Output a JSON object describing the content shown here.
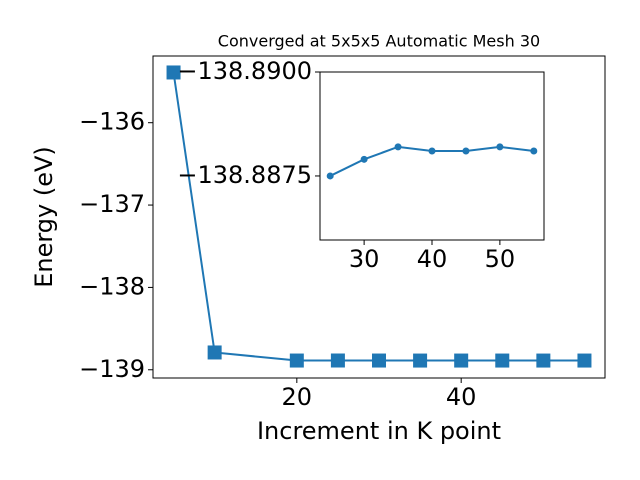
{
  "chart_data": [
    {
      "type": "line",
      "title": "Converged at 5x5x5 Automatic Mesh 30",
      "xlabel": "Increment in K point",
      "ylabel": "Energy (eV)",
      "x": [
        5,
        10,
        20,
        25,
        30,
        35,
        40,
        45,
        50,
        55
      ],
      "series": [
        {
          "color": "#1f77b4",
          "marker": "square",
          "values": [
            -135.39,
            -138.79,
            -138.888,
            -138.8875,
            -138.8879,
            -138.8882,
            -138.8881,
            -138.8881,
            -138.8882,
            -138.8881
          ]
        }
      ],
      "xlim": [
        2.5,
        57.5
      ],
      "ylim": [
        -139.1,
        -135.19
      ],
      "xticks": [
        20,
        40
      ],
      "yticks": [
        {
          "value": -136,
          "label": "−136"
        },
        {
          "value": -137,
          "label": "−137"
        },
        {
          "value": -138,
          "label": "−138"
        },
        {
          "value": -139,
          "label": "−139"
        }
      ]
    },
    {
      "type": "line",
      "x": [
        25,
        30,
        35,
        40,
        45,
        50,
        55
      ],
      "series": [
        {
          "color": "#1f77b4",
          "marker": "circle",
          "values": [
            -138.8875,
            -138.8879,
            -138.8882,
            -138.8881,
            -138.8881,
            -138.8882,
            -138.8881
          ]
        }
      ],
      "xlim": [
        23.5,
        56.5
      ],
      "ylim": [
        -138.88596,
        -138.89
      ],
      "xticks": [
        30,
        40,
        50
      ],
      "yticks": [
        {
          "value": -138.89,
          "label": "−138.8900"
        },
        {
          "value": -138.8875,
          "label": "−138.8875"
        }
      ]
    }
  ]
}
